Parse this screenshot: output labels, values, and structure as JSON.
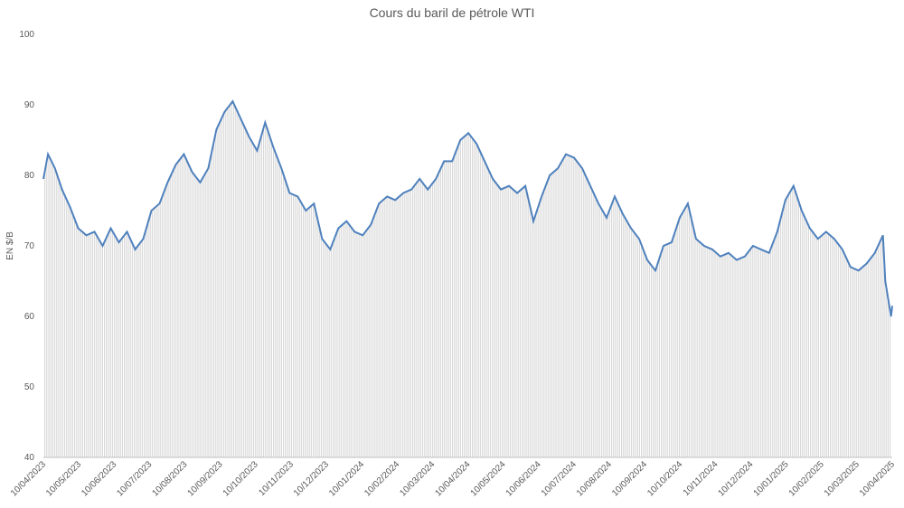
{
  "chart_data": {
    "type": "line",
    "title": "Cours du baril de pétrole  WTI",
    "ylabel": "EN $/B",
    "xlabel": "",
    "ylim": [
      40,
      100
    ],
    "yticks": [
      "100",
      "90",
      "80",
      "70",
      "60",
      "50",
      "40"
    ],
    "grid": false,
    "legend": "none",
    "colors": {
      "line": "#4f81bd",
      "bars": "#d9d9d9"
    },
    "x_ticks": [
      "10/04/2023",
      "10/05/2023",
      "10/06/2023",
      "10/07/2023",
      "10/08/2023",
      "10/09/2023",
      "10/10/2023",
      "10/11/2023",
      "10/12/2023",
      "10/01/2024",
      "10/02/2024",
      "10/03/2024",
      "10/04/2024",
      "10/05/2024",
      "10/06/2024",
      "10/07/2024",
      "10/08/2024",
      "10/09/2024",
      "10/10/2024",
      "10/11/2024",
      "10/12/2024",
      "10/01/2025",
      "10/02/2025",
      "10/03/2025",
      "10/04/2025"
    ],
    "series": [
      {
        "x": [
          "2023-04-10",
          "2023-04-14",
          "2023-04-20",
          "2023-04-26",
          "2023-05-03",
          "2023-05-10",
          "2023-05-17",
          "2023-05-24",
          "2023-05-31",
          "2023-06-07",
          "2023-06-14",
          "2023-06-21",
          "2023-06-28",
          "2023-07-05",
          "2023-07-12",
          "2023-07-19",
          "2023-07-26",
          "2023-08-02",
          "2023-08-09",
          "2023-08-16",
          "2023-08-23",
          "2023-08-30",
          "2023-09-06",
          "2023-09-13",
          "2023-09-20",
          "2023-09-27",
          "2023-10-04",
          "2023-10-11",
          "2023-10-18",
          "2023-10-25",
          "2023-11-01",
          "2023-11-08",
          "2023-11-15",
          "2023-11-22",
          "2023-11-29",
          "2023-12-06",
          "2023-12-13",
          "2023-12-20",
          "2023-12-27",
          "2024-01-03",
          "2024-01-10",
          "2024-01-17",
          "2024-01-24",
          "2024-01-31",
          "2024-02-07",
          "2024-02-14",
          "2024-02-21",
          "2024-02-28",
          "2024-03-06",
          "2024-03-13",
          "2024-03-20",
          "2024-03-27",
          "2024-04-03",
          "2024-04-10",
          "2024-04-17",
          "2024-04-24",
          "2024-05-01",
          "2024-05-08",
          "2024-05-15",
          "2024-05-22",
          "2024-05-29",
          "2024-06-05",
          "2024-06-12",
          "2024-06-19",
          "2024-06-26",
          "2024-07-03",
          "2024-07-10",
          "2024-07-17",
          "2024-07-24",
          "2024-07-31",
          "2024-08-07",
          "2024-08-14",
          "2024-08-21",
          "2024-08-28",
          "2024-09-04",
          "2024-09-11",
          "2024-09-18",
          "2024-09-25",
          "2024-10-02",
          "2024-10-09",
          "2024-10-16",
          "2024-10-23",
          "2024-10-30",
          "2024-11-06",
          "2024-11-13",
          "2024-11-20",
          "2024-11-27",
          "2024-12-04",
          "2024-12-11",
          "2024-12-18",
          "2024-12-25",
          "2025-01-01",
          "2025-01-08",
          "2025-01-15",
          "2025-01-22",
          "2025-01-29",
          "2025-02-05",
          "2025-02-12",
          "2025-02-19",
          "2025-02-26",
          "2025-03-05",
          "2025-03-12",
          "2025-03-19",
          "2025-03-26",
          "2025-04-02",
          "2025-04-04",
          "2025-04-07",
          "2025-04-09",
          "2025-04-10"
        ],
        "values": [
          79.5,
          83,
          81,
          78,
          75.5,
          72.5,
          71.5,
          72,
          70,
          72.5,
          70.5,
          72,
          69.5,
          71,
          75,
          76,
          79,
          81.5,
          83,
          80.5,
          79,
          81,
          86.5,
          89,
          90.5,
          88,
          85.5,
          83.5,
          87.5,
          84,
          81,
          77.5,
          77,
          75,
          76,
          71,
          69.5,
          72.5,
          73.5,
          72,
          71.5,
          73,
          76,
          77,
          76.5,
          77.5,
          78,
          79.5,
          78,
          79.5,
          82,
          82,
          85,
          86,
          84.5,
          82,
          79.5,
          78,
          78.5,
          77.5,
          78.5,
          73.5,
          77,
          80,
          81,
          83,
          82.5,
          81,
          78.5,
          76,
          74,
          77,
          74.5,
          72.5,
          71,
          68,
          66.5,
          70,
          70.5,
          74,
          76,
          71,
          70,
          69.5,
          68.5,
          69,
          68,
          68.5,
          70,
          69.5,
          69,
          72,
          76.5,
          78.5,
          75,
          72.5,
          71,
          72,
          71,
          69.5,
          67,
          66.5,
          67.5,
          69,
          71.5,
          65,
          62,
          60,
          61.5
        ]
      }
    ]
  }
}
